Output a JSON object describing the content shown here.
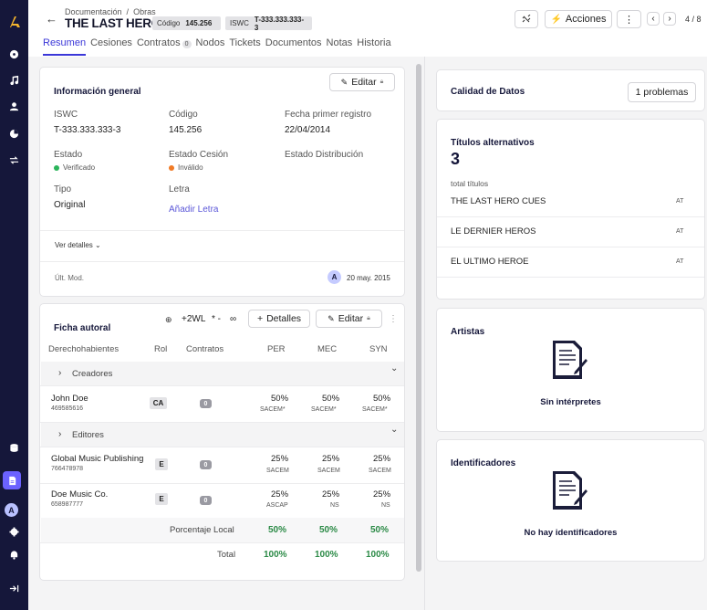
{
  "sidebar": {
    "icons": [
      "logo-icon",
      "disc-icon",
      "music-note-icon",
      "user-icon",
      "chart-icon",
      "swap-icon",
      "database-icon",
      "document-icon",
      "avatar",
      "gear-icon",
      "bell-icon",
      "collapse-icon"
    ],
    "avatar_initial": "A"
  },
  "header": {
    "breadcrumb": [
      "Documentación",
      "/",
      "Obras"
    ],
    "title": "THE LAST HERO",
    "code_label": "Código",
    "code_value": "145.256",
    "iswc_label": "ISWC",
    "iswc_value": "T-333.333.333-3",
    "actions_label": "Acciones",
    "more_label": "⋮",
    "counter": "4 / 8"
  },
  "tabs": [
    {
      "label": "Resumen",
      "active": true
    },
    {
      "label": "Cesiones"
    },
    {
      "label": "Contratos",
      "badge": "0"
    },
    {
      "label": "Nodos"
    },
    {
      "label": "Tickets"
    },
    {
      "label": "Documentos"
    },
    {
      "label": "Notas"
    },
    {
      "label": "Historia"
    }
  ],
  "general": {
    "title": "Información general",
    "edit_label": "Editar",
    "iswc_label": "ISWC",
    "iswc_value": "T-333.333.333-3",
    "code_label": "Código",
    "code_value": "145.256",
    "first_reg_label": "Fecha primer registro",
    "first_reg_value": "22/04/2014",
    "state_label": "Estado",
    "state_value": "Verificado",
    "cession_label": "Estado Cesión",
    "cession_value": "Inválido",
    "distribution_label": "Estado Distribución",
    "type_label": "Tipo",
    "type_value": "Original",
    "lyrics_label": "Letra",
    "lyrics_link": "Añadir Letra",
    "details_toggle": "Ver detalles",
    "last_mod_label": "Últ. Mod.",
    "last_mod_avatar": "A",
    "last_mod_date": "20 may. 2015",
    "colors": {
      "verified": "#2bb45b",
      "invalid": "#f07a25"
    }
  },
  "authorship": {
    "title": "Ficha autoral",
    "wl_label": "+2WL",
    "star_label": "* -",
    "infinity_label": "∞",
    "details_label": "Detalles",
    "edit_label": "Editar",
    "more_label": "⋮",
    "columns": [
      "Derechohabientes",
      "Rol",
      "Contratos",
      "PER",
      "MEC",
      "SYN"
    ],
    "creators_section": "Creadores",
    "editors_section": "Editores",
    "creators": [
      {
        "name": "John Doe",
        "id": "469585616",
        "role": "CA",
        "contracts": "0",
        "per": "50%",
        "per_soc": "SACEM*",
        "mec": "50%",
        "mec_soc": "SACEM*",
        "syn": "50%",
        "syn_soc": "SACEM*"
      }
    ],
    "editors": [
      {
        "name": "Global Music Publishing",
        "id": "766478978",
        "role": "E",
        "contracts": "0",
        "per": "25%",
        "per_soc": "SACEM",
        "mec": "25%",
        "mec_soc": "SACEM",
        "syn": "25%",
        "syn_soc": "SACEM"
      },
      {
        "name": "Doe Music Co.",
        "id": "658987777",
        "role": "E",
        "contracts": "0",
        "per": "25%",
        "per_soc": "ASCAP",
        "mec": "25%",
        "mec_soc": "NS",
        "syn": "25%",
        "syn_soc": "NS"
      }
    ],
    "local_label": "Porcentaje Local",
    "local": [
      "50%",
      "50%",
      "50%"
    ],
    "total_label": "Total",
    "total": [
      "100%",
      "100%",
      "100%"
    ]
  },
  "quality": {
    "title": "Calidad de Datos",
    "problems_label": "1 problemas"
  },
  "alt_titles": {
    "title": "Títulos alternativos",
    "count": "3",
    "count_label": "total títulos",
    "items": [
      {
        "title": "THE LAST HERO CUES",
        "tag": "AT"
      },
      {
        "title": "LE DERNIER HEROS",
        "tag": "AT"
      },
      {
        "title": "EL ULTIMO HEROE",
        "tag": "AT"
      }
    ]
  },
  "artists": {
    "title": "Artistas",
    "empty": "Sin intérpretes"
  },
  "identifiers": {
    "title": "Identificadores",
    "empty": "No hay identificadores"
  }
}
